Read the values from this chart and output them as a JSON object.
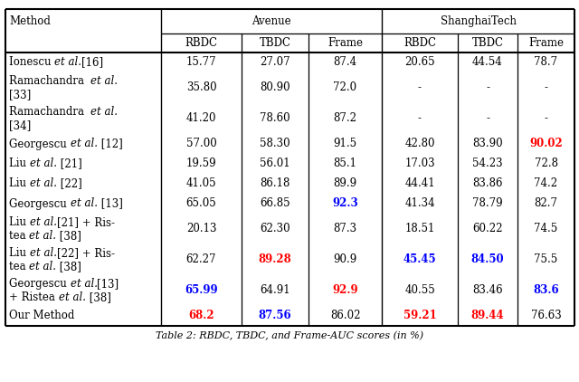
{
  "font_size": 8.5,
  "background": "#ffffff",
  "col_labels": [
    "RBDC",
    "TBDC",
    "Frame",
    "RBDC",
    "TBDC",
    "Frame"
  ],
  "rows": [
    {
      "line1": [
        [
          "Ionescu ",
          "normal"
        ],
        [
          "et al.",
          "italic"
        ],
        [
          "[16]",
          "normal"
        ]
      ],
      "line2": [],
      "v": [
        "15.77",
        "27.07",
        "87.4",
        "20.65",
        "44.54",
        "78.7"
      ],
      "c": [
        "black",
        "black",
        "black",
        "black",
        "black",
        "black"
      ]
    },
    {
      "line1": [
        [
          "Ramachandra  ",
          "normal"
        ],
        [
          "et al.",
          "italic"
        ]
      ],
      "line2": [
        [
          "[33]",
          "normal"
        ]
      ],
      "v": [
        "35.80",
        "80.90",
        "72.0",
        "-",
        "-",
        "-"
      ],
      "c": [
        "black",
        "black",
        "black",
        "black",
        "black",
        "black"
      ]
    },
    {
      "line1": [
        [
          "Ramachandra  ",
          "normal"
        ],
        [
          "et al.",
          "italic"
        ]
      ],
      "line2": [
        [
          "[34]",
          "normal"
        ]
      ],
      "v": [
        "41.20",
        "78.60",
        "87.2",
        "-",
        "-",
        "-"
      ],
      "c": [
        "black",
        "black",
        "black",
        "black",
        "black",
        "black"
      ]
    },
    {
      "line1": [
        [
          "Georgescu ",
          "normal"
        ],
        [
          "et al.",
          "italic"
        ],
        [
          " [12]",
          "normal"
        ]
      ],
      "line2": [],
      "v": [
        "57.00",
        "58.30",
        "91.5",
        "42.80",
        "83.90",
        "90.02"
      ],
      "c": [
        "black",
        "black",
        "black",
        "black",
        "black",
        "red"
      ]
    },
    {
      "line1": [
        [
          "Liu ",
          "normal"
        ],
        [
          "et al.",
          "italic"
        ],
        [
          " [21]",
          "normal"
        ]
      ],
      "line2": [],
      "v": [
        "19.59",
        "56.01",
        "85.1",
        "17.03",
        "54.23",
        "72.8"
      ],
      "c": [
        "black",
        "black",
        "black",
        "black",
        "black",
        "black"
      ]
    },
    {
      "line1": [
        [
          "Liu ",
          "normal"
        ],
        [
          "et al.",
          "italic"
        ],
        [
          " [22]",
          "normal"
        ]
      ],
      "line2": [],
      "v": [
        "41.05",
        "86.18",
        "89.9",
        "44.41",
        "83.86",
        "74.2"
      ],
      "c": [
        "black",
        "black",
        "black",
        "black",
        "black",
        "black"
      ]
    },
    {
      "line1": [
        [
          "Georgescu ",
          "normal"
        ],
        [
          "et al.",
          "italic"
        ],
        [
          " [13]",
          "normal"
        ]
      ],
      "line2": [],
      "v": [
        "65.05",
        "66.85",
        "92.3",
        "41.34",
        "78.79",
        "82.7"
      ],
      "c": [
        "black",
        "black",
        "blue",
        "black",
        "black",
        "black"
      ]
    },
    {
      "line1": [
        [
          "Liu ",
          "normal"
        ],
        [
          "et al.",
          "italic"
        ],
        [
          "[21] + Ris-",
          "normal"
        ]
      ],
      "line2": [
        [
          "tea ",
          "normal"
        ],
        [
          "et al.",
          "italic"
        ],
        [
          " [38]",
          "normal"
        ]
      ],
      "v": [
        "20.13",
        "62.30",
        "87.3",
        "18.51",
        "60.22",
        "74.5"
      ],
      "c": [
        "black",
        "black",
        "black",
        "black",
        "black",
        "black"
      ]
    },
    {
      "line1": [
        [
          "Liu ",
          "normal"
        ],
        [
          "et al.",
          "italic"
        ],
        [
          "[22] + Ris-",
          "normal"
        ]
      ],
      "line2": [
        [
          "tea ",
          "normal"
        ],
        [
          "et al.",
          "italic"
        ],
        [
          " [38]",
          "normal"
        ]
      ],
      "v": [
        "62.27",
        "89.28",
        "90.9",
        "45.45",
        "84.50",
        "75.5"
      ],
      "c": [
        "black",
        "red",
        "black",
        "blue",
        "blue",
        "black"
      ]
    },
    {
      "line1": [
        [
          "Georgescu ",
          "normal"
        ],
        [
          "et al.",
          "italic"
        ],
        [
          "[13]",
          "normal"
        ]
      ],
      "line2": [
        [
          "+ Ristea ",
          "normal"
        ],
        [
          "et al.",
          "italic"
        ],
        [
          " [38]",
          "normal"
        ]
      ],
      "v": [
        "65.99",
        "64.91",
        "92.9",
        "40.55",
        "83.46",
        "83.6"
      ],
      "c": [
        "blue",
        "black",
        "red",
        "black",
        "black",
        "blue"
      ]
    },
    {
      "line1": [
        [
          "Our Method",
          "normal"
        ]
      ],
      "line2": [],
      "v": [
        "68.2",
        "87.56",
        "86.02",
        "59.21",
        "89.44",
        "76.63"
      ],
      "c": [
        "red",
        "blue",
        "black",
        "red",
        "red",
        "black"
      ]
    }
  ]
}
